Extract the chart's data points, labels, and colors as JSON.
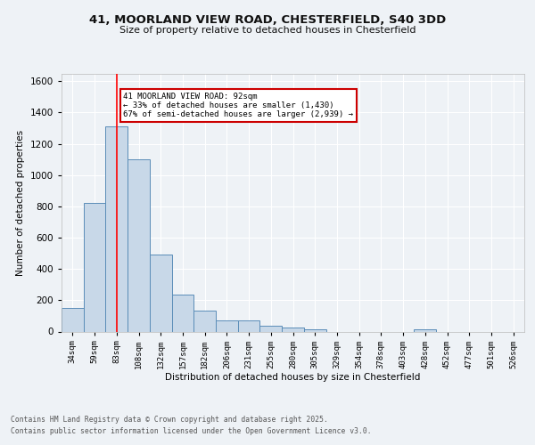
{
  "title_line1": "41, MOORLAND VIEW ROAD, CHESTERFIELD, S40 3DD",
  "title_line2": "Size of property relative to detached houses in Chesterfield",
  "xlabel": "Distribution of detached houses by size in Chesterfield",
  "ylabel": "Number of detached properties",
  "bin_labels": [
    "34sqm",
    "59sqm",
    "83sqm",
    "108sqm",
    "132sqm",
    "157sqm",
    "182sqm",
    "206sqm",
    "231sqm",
    "255sqm",
    "280sqm",
    "305sqm",
    "329sqm",
    "354sqm",
    "378sqm",
    "403sqm",
    "428sqm",
    "452sqm",
    "477sqm",
    "501sqm",
    "526sqm"
  ],
  "bar_values": [
    150,
    820,
    1310,
    1100,
    490,
    235,
    135,
    70,
    70,
    37,
    25,
    13,
    0,
    0,
    0,
    0,
    13,
    0,
    0,
    0,
    0
  ],
  "bar_color": "#c8d8e8",
  "bar_edge_color": "#5b8db8",
  "red_line_x": 2,
  "ylim": [
    0,
    1650
  ],
  "yticks": [
    0,
    200,
    400,
    600,
    800,
    1000,
    1200,
    1400,
    1600
  ],
  "annotation_text": "41 MOORLAND VIEW ROAD: 92sqm\n← 33% of detached houses are smaller (1,430)\n67% of semi-detached houses are larger (2,939) →",
  "annotation_box_color": "#ffffff",
  "annotation_box_edge": "#cc0000",
  "footnote_line1": "Contains HM Land Registry data © Crown copyright and database right 2025.",
  "footnote_line2": "Contains public sector information licensed under the Open Government Licence v3.0.",
  "background_color": "#eef2f6",
  "grid_color": "#ffffff"
}
